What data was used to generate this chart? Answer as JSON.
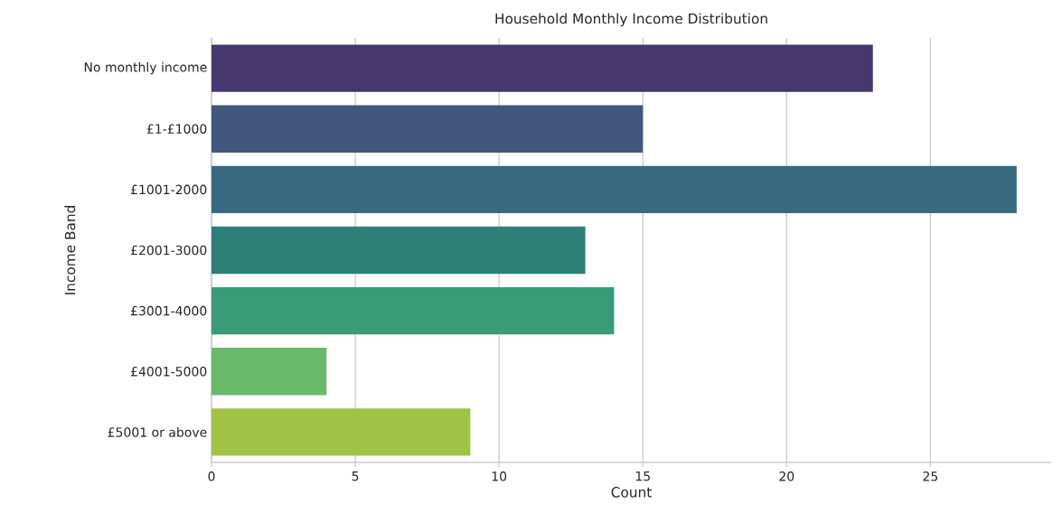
{
  "chart_data": {
    "type": "bar",
    "orientation": "horizontal",
    "title": "Household Monthly Income Distribution",
    "xlabel": "Count",
    "ylabel": "Income Band",
    "categories": [
      "No monthly income",
      "£1-£1000",
      "£1001-2000",
      "£2001-3000",
      "£3001-4000",
      "£4001-5000",
      "£5001 or above"
    ],
    "values": [
      23,
      15,
      28,
      13,
      14,
      4,
      9
    ],
    "colors": [
      "#46376e",
      "#41577e",
      "#38697f",
      "#2d8078",
      "#399b77",
      "#69b96b",
      "#a0c245"
    ],
    "xlim": [
      0,
      29.2
    ],
    "xticks": [
      0,
      5,
      10,
      15,
      20,
      25
    ],
    "grid": "x"
  }
}
